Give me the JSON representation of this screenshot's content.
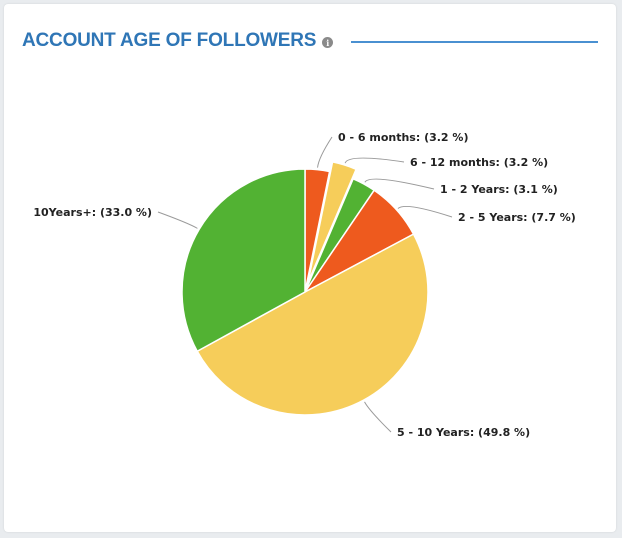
{
  "header": {
    "title": "ACCOUNT AGE OF FOLLOWERS",
    "info_icon": "info-icon"
  },
  "colors": {
    "title": "#2f76b6",
    "rule": "#4a90d1",
    "green": "#52b233",
    "orange": "#ee5a1e",
    "yellow": "#f6cd5a"
  },
  "chart_data": {
    "type": "pie",
    "title": "ACCOUNT AGE OF FOLLOWERS",
    "slices": [
      {
        "label": "0 - 6 months",
        "value": 3.2,
        "display": "0 - 6 months: (3.2 %)",
        "color": "#ee5a1e",
        "exploded": false
      },
      {
        "label": "6 - 12 months",
        "value": 3.2,
        "display": "6 - 12 months: (3.2 %)",
        "color": "#f6cd5a",
        "exploded": true
      },
      {
        "label": "1 - 2 Years",
        "value": 3.1,
        "display": "1 - 2 Years: (3.1 %)",
        "color": "#52b233",
        "exploded": false
      },
      {
        "label": "2 - 5 Years",
        "value": 7.7,
        "display": "2 - 5 Years: (7.7 %)",
        "color": "#ee5a1e",
        "exploded": false
      },
      {
        "label": "5 - 10 Years",
        "value": 49.8,
        "display": "5 - 10 Years: (49.8 %)",
        "color": "#f6cd5a",
        "exploded": false
      },
      {
        "label": "10Years+",
        "value": 33.0,
        "display": "10Years+: (33.0 %)",
        "color": "#52b233",
        "exploded": false
      }
    ]
  }
}
